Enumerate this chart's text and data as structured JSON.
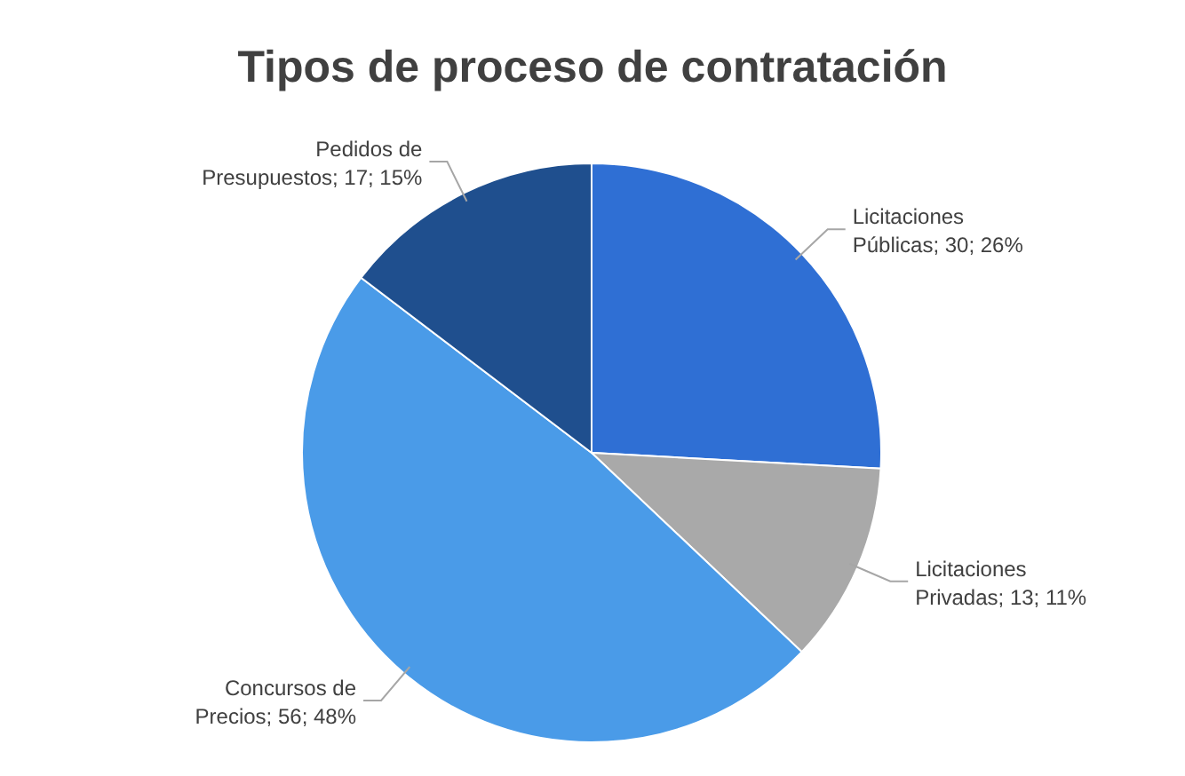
{
  "chart_data": {
    "type": "pie",
    "title": "Tipos de proceso de contratación",
    "categories": [
      "Licitaciones Públicas",
      "Licitaciones Privadas",
      "Concursos de Precios",
      "Pedidos de Presupuestos"
    ],
    "values": [
      30,
      13,
      56,
      17
    ],
    "value_labels": [
      "30; 26%",
      "13; 11%",
      "56; 48%",
      "17; 15%"
    ],
    "colors": [
      "#2f6fd4",
      "#a9a9a9",
      "#4a9be8",
      "#1f4f8e"
    ],
    "legend": false
  }
}
